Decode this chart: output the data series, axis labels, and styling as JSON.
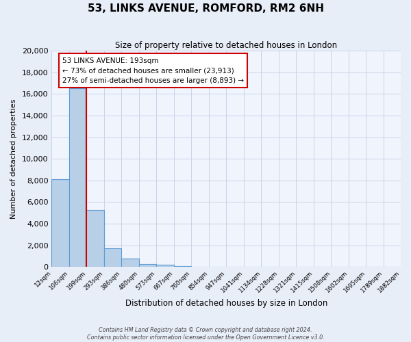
{
  "title": "53, LINKS AVENUE, ROMFORD, RM2 6NH",
  "subtitle": "Size of property relative to detached houses in London",
  "xlabel": "Distribution of detached houses by size in London",
  "ylabel": "Number of detached properties",
  "bin_labels": [
    "12sqm",
    "106sqm",
    "199sqm",
    "293sqm",
    "386sqm",
    "480sqm",
    "573sqm",
    "667sqm",
    "760sqm",
    "854sqm",
    "947sqm",
    "1041sqm",
    "1134sqm",
    "1228sqm",
    "1321sqm",
    "1415sqm",
    "1508sqm",
    "1602sqm",
    "1695sqm",
    "1789sqm",
    "1882sqm"
  ],
  "bar_values": [
    8100,
    16500,
    5300,
    1750,
    800,
    300,
    200,
    100,
    0,
    0,
    0,
    0,
    0,
    0,
    0,
    0,
    0,
    0,
    0,
    0
  ],
  "bar_color": "#b8cfe8",
  "bar_edge_color": "#5b9bd5",
  "property_line_color": "#cc0000",
  "annotation_text": "53 LINKS AVENUE: 193sqm\n← 73% of detached houses are smaller (23,913)\n27% of semi-detached houses are larger (8,893) →",
  "annotation_box_color": "#ffffff",
  "annotation_box_edge_color": "#cc0000",
  "ylim": [
    0,
    20000
  ],
  "yticks": [
    0,
    2000,
    4000,
    6000,
    8000,
    10000,
    12000,
    14000,
    16000,
    18000,
    20000
  ],
  "footer_line1": "Contains HM Land Registry data © Crown copyright and database right 2024.",
  "footer_line2": "Contains public sector information licensed under the Open Government Licence v3.0.",
  "bg_color": "#e8eef8",
  "plot_bg_color": "#f0f4fc",
  "grid_color": "#c8d4e8"
}
